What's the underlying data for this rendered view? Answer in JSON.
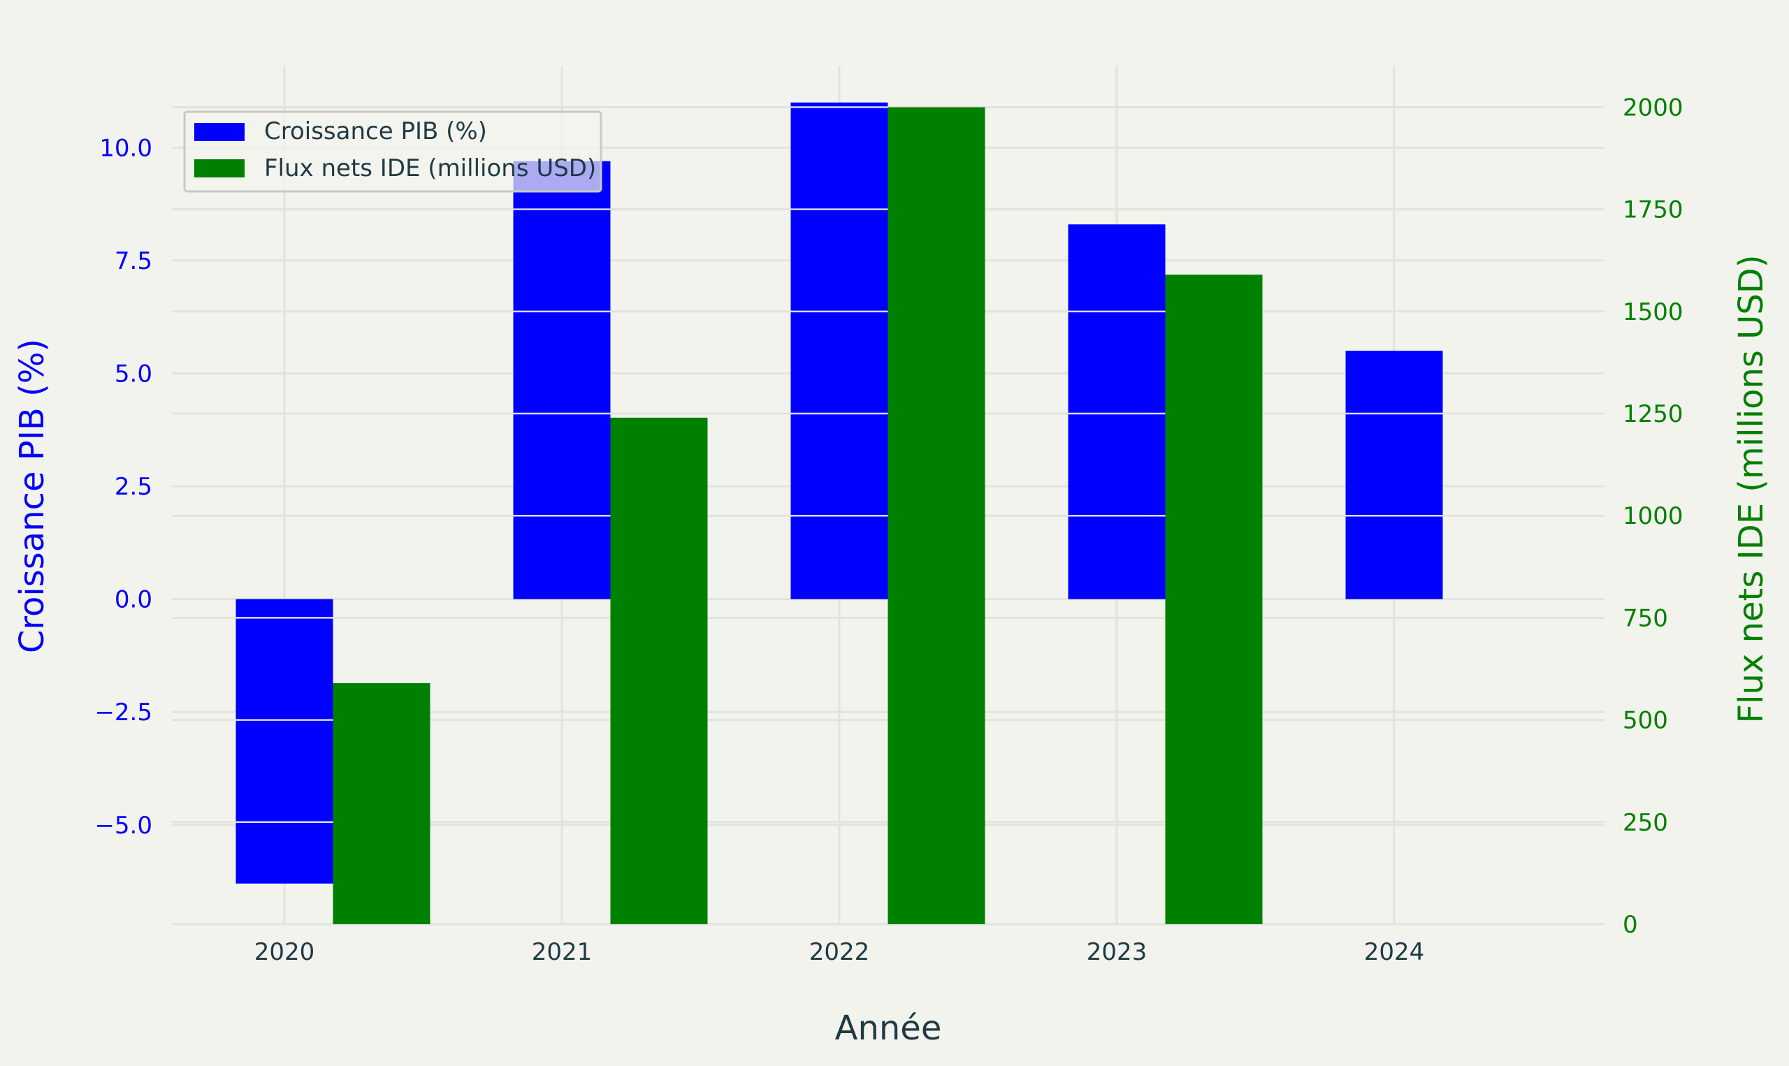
{
  "colors": {
    "background": "#f3f3ee",
    "gdp": "#0000ff",
    "fdi": "#008000",
    "grid": "#e3e3de",
    "text": "#1f3a44"
  },
  "chart_data": {
    "type": "bar",
    "categories": [
      "2020",
      "2021",
      "2022",
      "2023",
      "2024"
    ],
    "xlabel": "Année",
    "series": [
      {
        "name": "Croissance PIB (%)",
        "axis": "left",
        "color": "#0000ff",
        "values": [
          -6.3,
          9.7,
          11.0,
          8.3,
          5.5
        ]
      },
      {
        "name": "Flux nets IDE (millions USD)",
        "axis": "right",
        "color": "#008000",
        "values": [
          590,
          1240,
          2000,
          1590,
          null
        ]
      }
    ],
    "left_axis": {
      "label": "Croissance PIB (%)",
      "ylim": [
        -7.2,
        11.8
      ],
      "ticks": [
        -5.0,
        -2.5,
        0.0,
        2.5,
        5.0,
        7.5,
        10.0
      ],
      "tick_labels": [
        "−5.0",
        "−2.5",
        "0.0",
        "2.5",
        "5.0",
        "7.5",
        "10.0"
      ]
    },
    "right_axis": {
      "label": "Flux nets IDE (millions USD)",
      "ylim": [
        0,
        2100
      ],
      "ticks": [
        0,
        250,
        500,
        750,
        1000,
        1250,
        1500,
        1750,
        2000
      ],
      "tick_labels": [
        "0",
        "250",
        "500",
        "750",
        "1000",
        "1250",
        "1500",
        "1750",
        "2000"
      ]
    },
    "grid": true,
    "legend": "top-left"
  }
}
